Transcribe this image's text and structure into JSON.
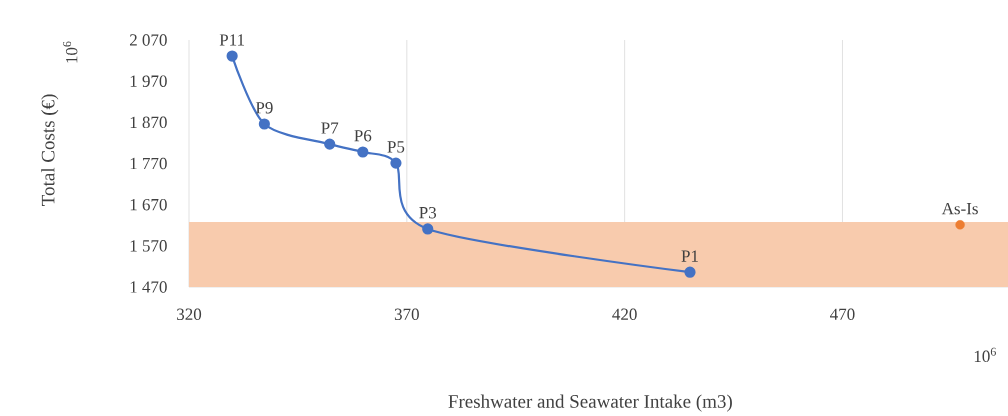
{
  "chart_data": {
    "type": "line",
    "xlabel": "Freshwater and Seawater Intake (m3)",
    "ylabel": "Total Costs (€)",
    "xlim": [
      320,
      508
    ],
    "xticks": [
      320,
      370,
      420,
      470
    ],
    "ylim": [
      1470,
      2070
    ],
    "yticks": [
      {
        "value": 1470,
        "label": "1 470"
      },
      {
        "value": 1570,
        "label": "1 570"
      },
      {
        "value": 1670,
        "label": "1 670"
      },
      {
        "value": 1770,
        "label": "1 770"
      },
      {
        "value": 1870,
        "label": "1 870"
      },
      {
        "value": 1970,
        "label": "1 970"
      },
      {
        "value": 2070,
        "label": "2 070"
      }
    ],
    "grid": "x",
    "marker": "circle",
    "series": [
      {
        "color": "#4472c4",
        "x": [
          329.9,
          337.3,
          352.3,
          359.9,
          367.5,
          374.8,
          435.0
        ],
        "values": [
          2031,
          1866,
          1817,
          1798,
          1771,
          1611,
          1506
        ]
      },
      {
        "type": "scatter",
        "color": "#ed7d31",
        "x": [
          497
        ],
        "values": [
          1621
        ]
      }
    ],
    "bands": [
      {
        "axis": "y",
        "from": 1470,
        "to": 1628,
        "color": "#f8cbad"
      }
    ],
    "annotations": [
      {
        "text": "P11",
        "x": 329.9,
        "y": 2031
      },
      {
        "text": "P9",
        "x": 337.3,
        "y": 1866
      },
      {
        "text": "P7",
        "x": 352.3,
        "y": 1817
      },
      {
        "text": "P6",
        "x": 359.9,
        "y": 1798
      },
      {
        "text": "P5",
        "x": 367.5,
        "y": 1771
      },
      {
        "text": "P3",
        "x": 374.8,
        "y": 1611
      },
      {
        "text": "P1",
        "x": 435.0,
        "y": 1506
      },
      {
        "text": "As-Is",
        "x": 497,
        "y": 1621
      },
      "10$^{6}$",
      "10$^{6}$"
    ]
  }
}
